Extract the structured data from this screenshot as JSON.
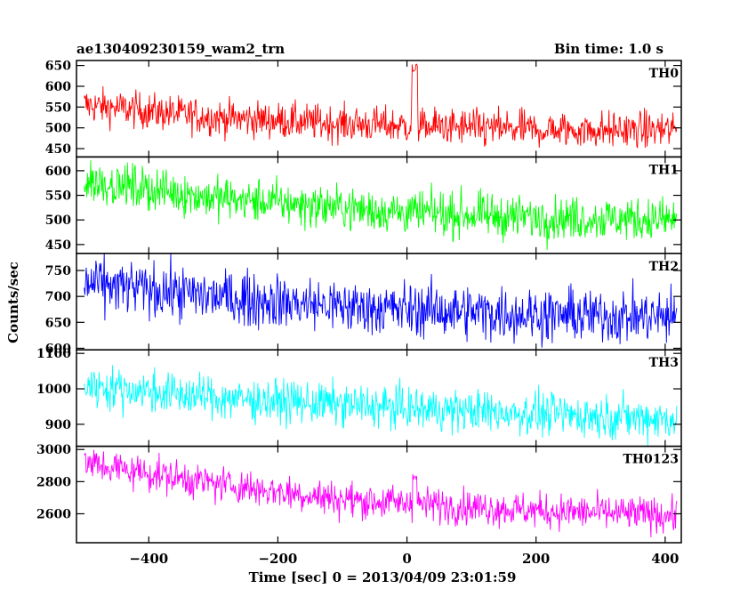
{
  "chart_data": {
    "type": "line",
    "title_left": "ae130409230159_wam2_trn",
    "title_right": "Bin time: 1.0 s",
    "xlabel": "Time [sec] 0 = 2013/04/09 23:01:59",
    "ylabel": "Counts/sec",
    "x_range": [
      -512,
      425
    ],
    "x_data_range": [
      -500,
      418
    ],
    "x_ticks": [
      -400,
      -200,
      0,
      200,
      400
    ],
    "x_tick_labels": [
      "−400",
      "−200",
      "0",
      "200",
      "400"
    ],
    "panels": [
      {
        "name": "TH0",
        "color": "#ff0000",
        "ylim": [
          430,
          662
        ],
        "yticks": [
          450,
          500,
          550,
          600,
          650
        ],
        "ytick_labels": [
          "450",
          "500",
          "550",
          "600",
          "650"
        ],
        "trend": [
          [
            -500,
            555
          ],
          [
            -300,
            525
          ],
          [
            -100,
            510
          ],
          [
            0,
            505
          ],
          [
            200,
            495
          ],
          [
            418,
            495
          ]
        ],
        "noise": 22,
        "spikes": [
          {
            "x": 12,
            "y": 655,
            "width": 8
          }
        ]
      },
      {
        "name": "TH1",
        "color": "#00ff00",
        "ylim": [
          432,
          628
        ],
        "yticks": [
          450,
          500,
          550,
          600
        ],
        "ytick_labels": [
          "450",
          "500",
          "550",
          "600"
        ],
        "trend": [
          [
            -500,
            580
          ],
          [
            -300,
            545
          ],
          [
            -100,
            525
          ],
          [
            0,
            515
          ],
          [
            200,
            505
          ],
          [
            418,
            500
          ]
        ],
        "noise": 22,
        "spikes": []
      },
      {
        "name": "TH2",
        "color": "#0000ff",
        "ylim": [
          597,
          783
        ],
        "yticks": [
          600,
          650,
          700,
          750
        ],
        "ytick_labels": [
          "600",
          "650",
          "700",
          "750"
        ],
        "trend": [
          [
            -500,
            725
          ],
          [
            -300,
            700
          ],
          [
            -100,
            680
          ],
          [
            0,
            675
          ],
          [
            200,
            665
          ],
          [
            418,
            660
          ]
        ],
        "noise": 26,
        "spikes": []
      },
      {
        "name": "TH3",
        "color": "#00ffff",
        "ylim": [
          838,
          1110
        ],
        "yticks": [
          900,
          1000,
          1100
        ],
        "ytick_labels": [
          "900",
          "1000",
          "1100"
        ],
        "trend": [
          [
            -500,
            1010
          ],
          [
            -300,
            975
          ],
          [
            -100,
            955
          ],
          [
            0,
            945
          ],
          [
            200,
            930
          ],
          [
            418,
            915
          ]
        ],
        "noise": 30,
        "spikes": []
      },
      {
        "name": "TH0123",
        "color": "#ff00ff",
        "ylim": [
          2420,
          3020
        ],
        "yticks": [
          2600,
          2800,
          3000
        ],
        "ytick_labels": [
          "2600",
          "2800",
          "3000"
        ],
        "trend": [
          [
            -500,
            2915
          ],
          [
            -300,
            2790
          ],
          [
            -100,
            2690
          ],
          [
            0,
            2665
          ],
          [
            200,
            2620
          ],
          [
            418,
            2590
          ]
        ],
        "noise": 55,
        "spikes": [
          {
            "x": 12,
            "y": 2860,
            "width": 6
          }
        ]
      }
    ]
  }
}
